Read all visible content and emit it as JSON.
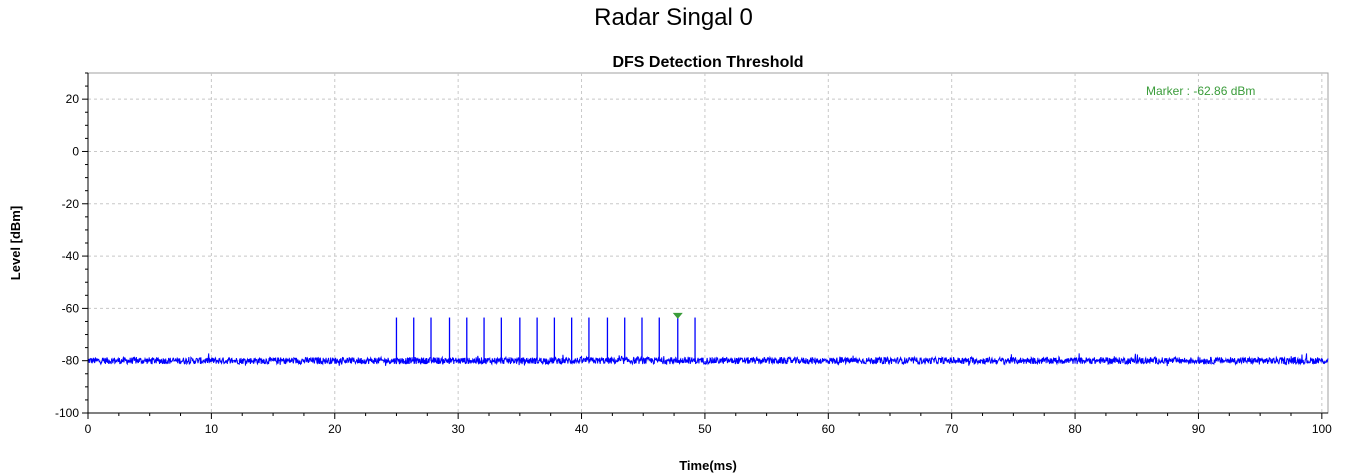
{
  "page": {
    "title": "Radar Singal 0"
  },
  "chart_data": {
    "type": "line",
    "title": "DFS Detection Threshold",
    "xlabel": "Time(ms)",
    "ylabel": "Level [dBm]",
    "xlim": [
      0,
      100.5
    ],
    "ylim": [
      -100,
      30
    ],
    "xticks": [
      0,
      10,
      20,
      30,
      40,
      50,
      60,
      70,
      80,
      90,
      100
    ],
    "yticks": [
      20,
      0,
      -20,
      -40,
      -60,
      -80,
      -100
    ],
    "grid": true,
    "noise_floor": -80,
    "pulse_times": [
      25.0,
      26.4,
      27.8,
      29.3,
      30.7,
      32.1,
      33.5,
      35.0,
      36.4,
      37.8,
      39.2,
      40.6,
      42.1,
      43.5,
      44.9,
      46.3,
      47.8,
      49.2
    ],
    "pulse_level": -63.5,
    "marker": {
      "x": 47.8,
      "y": -62.86,
      "label": "Marker : -62.86 dBm"
    },
    "colors": {
      "trace": "#0000ff",
      "grid": "#c8c8c8",
      "marker": "#3a9c3a"
    }
  }
}
